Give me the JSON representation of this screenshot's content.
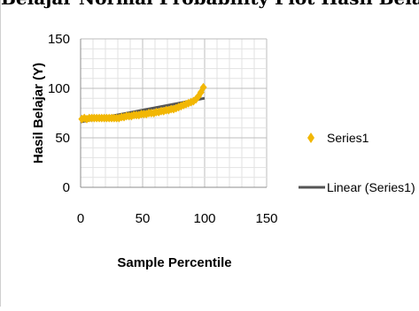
{
  "header_fragment": "Belajar Normal Probability Plot Hasil Belajar (Y)",
  "chart_data": {
    "type": "scatter",
    "title": "",
    "xlabel": "Sample Percentile",
    "ylabel": "Hasil Belajar (Y)",
    "xlim": [
      0,
      150
    ],
    "ylim": [
      0,
      150
    ],
    "x_ticks": [
      0,
      50,
      100,
      150
    ],
    "y_ticks": [
      0,
      50,
      100,
      150
    ],
    "grid": true,
    "legend_position": "right",
    "series": [
      {
        "name": "Series1",
        "marker": "diamond",
        "color": "#f2b705",
        "points": [
          [
            1,
            69
          ],
          [
            3,
            70
          ],
          [
            5,
            69
          ],
          [
            7,
            70
          ],
          [
            9,
            70
          ],
          [
            11,
            70
          ],
          [
            13,
            70
          ],
          [
            15,
            70
          ],
          [
            17,
            70
          ],
          [
            19,
            70
          ],
          [
            21,
            70
          ],
          [
            23,
            70
          ],
          [
            25,
            70
          ],
          [
            27,
            70
          ],
          [
            29,
            70
          ],
          [
            31,
            70
          ],
          [
            33,
            71
          ],
          [
            35,
            71
          ],
          [
            37,
            72
          ],
          [
            39,
            72
          ],
          [
            41,
            72
          ],
          [
            43,
            73
          ],
          [
            45,
            73
          ],
          [
            47,
            73
          ],
          [
            49,
            74
          ],
          [
            51,
            74
          ],
          [
            53,
            74
          ],
          [
            55,
            75
          ],
          [
            57,
            75
          ],
          [
            59,
            75
          ],
          [
            61,
            76
          ],
          [
            63,
            76
          ],
          [
            65,
            77
          ],
          [
            67,
            77
          ],
          [
            69,
            78
          ],
          [
            71,
            78
          ],
          [
            73,
            79
          ],
          [
            75,
            79
          ],
          [
            77,
            80
          ],
          [
            79,
            81
          ],
          [
            81,
            82
          ],
          [
            83,
            83
          ],
          [
            85,
            84
          ],
          [
            87,
            85
          ],
          [
            89,
            86
          ],
          [
            91,
            87
          ],
          [
            93,
            89
          ],
          [
            95,
            92
          ],
          [
            97,
            96
          ],
          [
            99,
            101
          ]
        ]
      }
    ],
    "trendline": {
      "name": "Linear (Series1)",
      "color": "#555555",
      "x": [
        0,
        100
      ],
      "y": [
        66,
        90
      ]
    }
  }
}
